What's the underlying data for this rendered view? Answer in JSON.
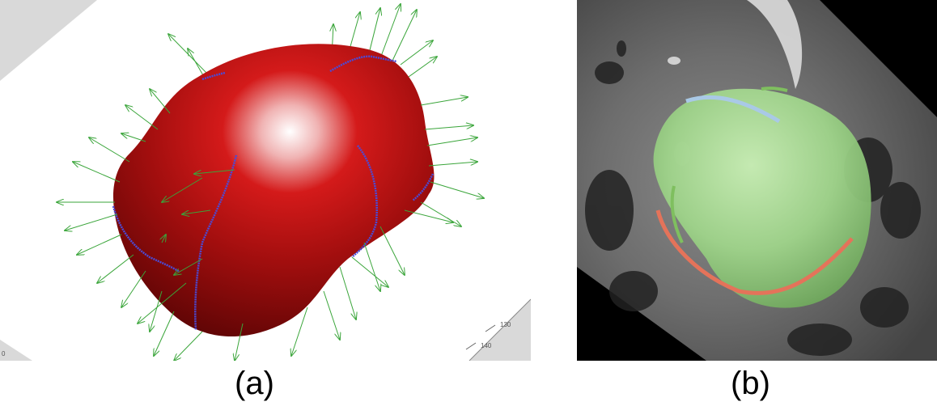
{
  "panels": [
    {
      "id": "a",
      "caption": "(a)",
      "axis_ticks": [
        "130",
        "140",
        "0"
      ]
    },
    {
      "id": "b",
      "caption": "(b)"
    }
  ]
}
